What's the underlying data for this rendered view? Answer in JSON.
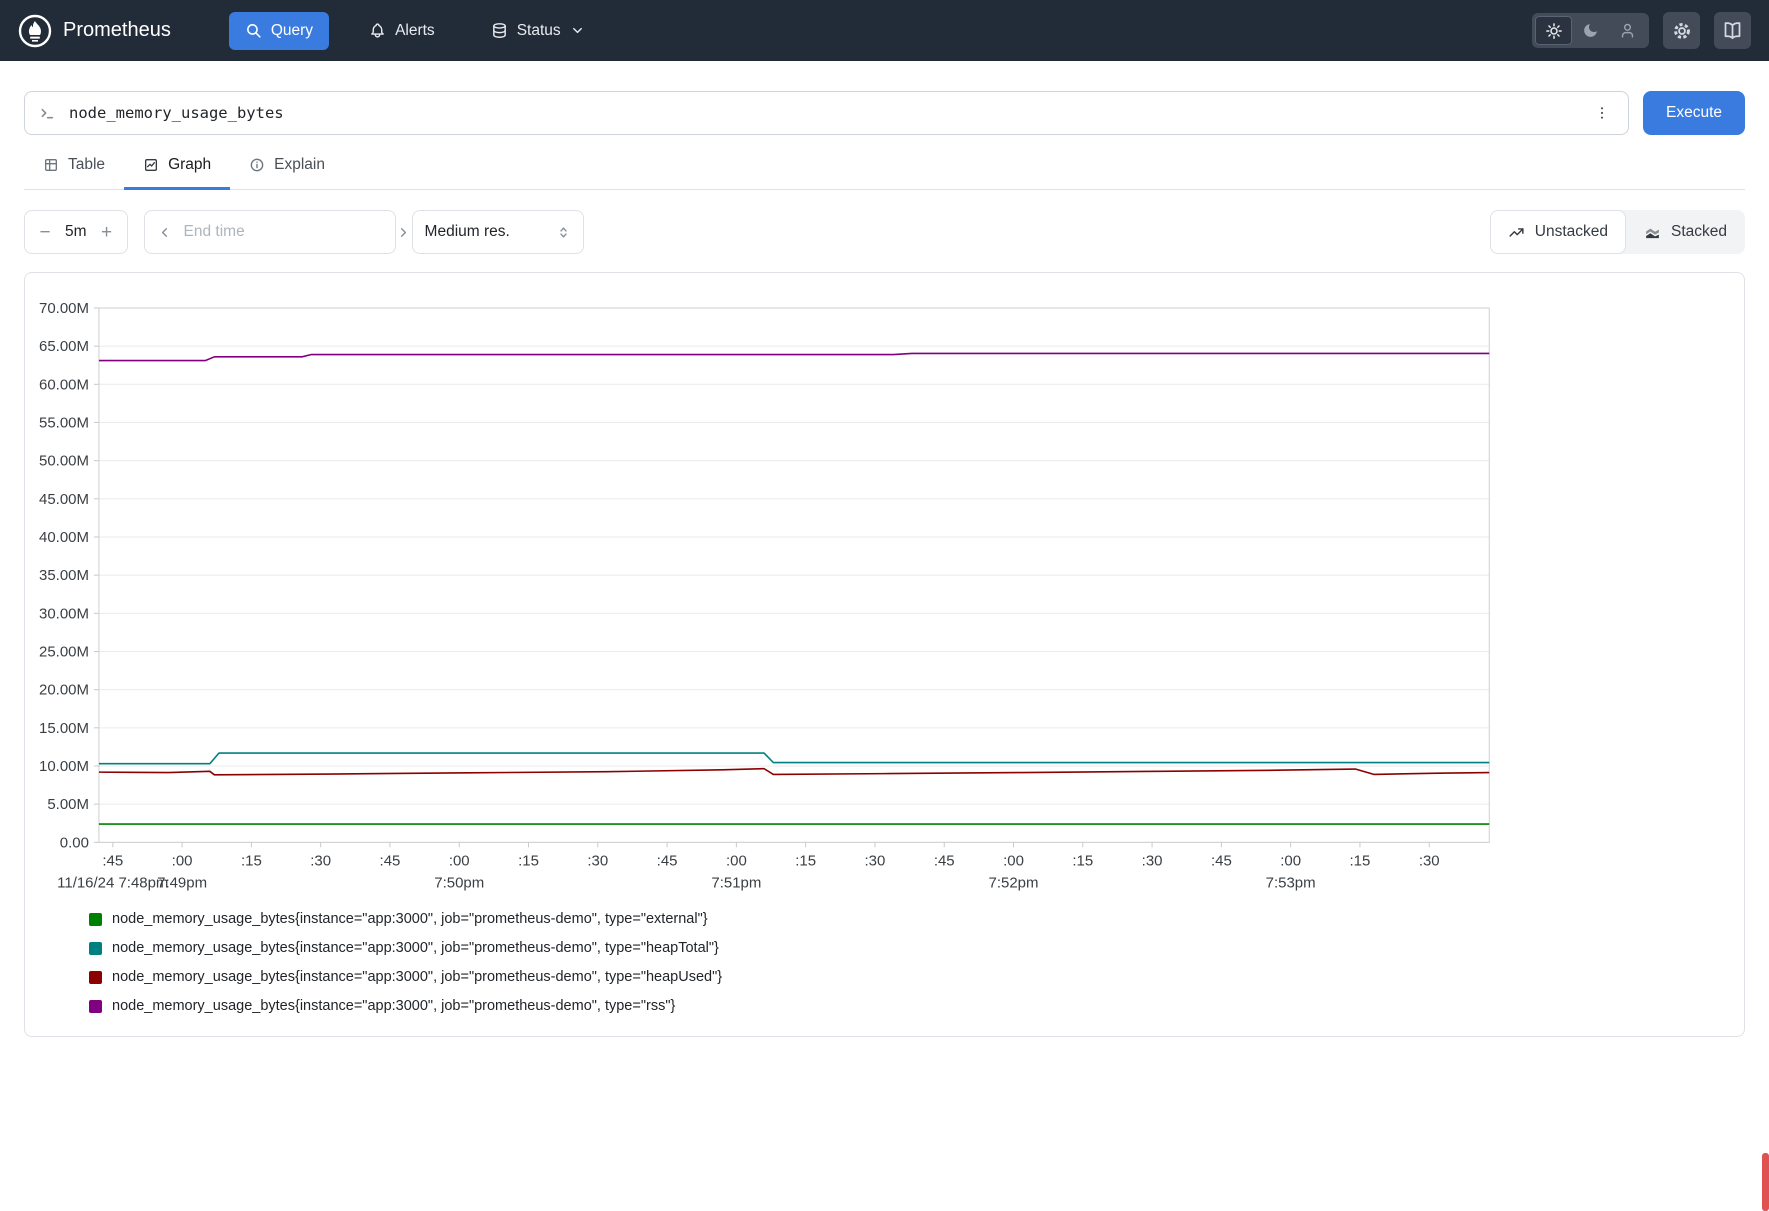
{
  "navbar": {
    "brand": "Prometheus",
    "query_label": "Query",
    "alerts_label": "Alerts",
    "status_label": "Status"
  },
  "icons": {
    "logo": "prometheus-flame",
    "query": "search",
    "alerts": "bell",
    "status": "database",
    "status_caret": "chevron-down",
    "theme": [
      "sun",
      "moon",
      "user"
    ],
    "settings": "gear",
    "docs": "book",
    "query_input": "terminal-prompt",
    "query_menu": "kebab-vertical",
    "tab_table": "grid",
    "tab_graph": "chart-box",
    "tab_explain": "info-circle",
    "range": [
      "minus",
      "plus"
    ],
    "end_time": [
      "chevron-left",
      "chevron-right"
    ],
    "resolution": "selector-updown",
    "unstacked": "trend-line",
    "stacked": "stacked-area"
  },
  "query_bar": {
    "value": "node_memory_usage_bytes",
    "execute_label": "Execute"
  },
  "tabs": {
    "table": "Table",
    "graph": "Graph",
    "explain": "Explain"
  },
  "controls": {
    "minus": "−",
    "range_value": "5m",
    "plus": "+",
    "end_time_placeholder": "End time",
    "resolution_value": "Medium res.",
    "unstacked_label": "Unstacked",
    "stacked_label": "Stacked"
  },
  "chart_data": {
    "type": "line",
    "title": "",
    "unit": "bytes (M = millions)",
    "ylim": [
      0,
      70
    ],
    "y_tick_values": [
      70,
      65,
      60,
      55,
      50,
      45,
      40,
      35,
      30,
      25,
      20,
      15,
      10,
      5,
      0
    ],
    "y_tick_labels": [
      "70.00M",
      "65.00M",
      "60.00M",
      "55.00M",
      "50.00M",
      "45.00M",
      "40.00M",
      "35.00M",
      "30.00M",
      "25.00M",
      "20.00M",
      "15.00M",
      "10.00M",
      "5.00M",
      "0.00"
    ],
    "time_domain_seconds": [
      0,
      301
    ],
    "x_tick_seconds": [
      3,
      18,
      33,
      48,
      63,
      78,
      93,
      108,
      123,
      138,
      153,
      168,
      183,
      198,
      213,
      228,
      243,
      258,
      273,
      288
    ],
    "x_tick_labels": [
      ":45",
      ":00",
      ":15",
      ":30",
      ":45",
      ":00",
      ":15",
      ":30",
      ":45",
      ":00",
      ":15",
      ":30",
      ":45",
      ":00",
      ":15",
      ":30",
      ":45",
      ":00",
      ":15",
      ":30"
    ],
    "x_date_labels": [
      {
        "label": "11/16/24 7:48pm",
        "t": 3
      },
      {
        "label": "7:49pm",
        "t": 18
      },
      {
        "label": "7:50pm",
        "t": 78
      },
      {
        "label": "7:51pm",
        "t": 138
      },
      {
        "label": "7:52pm",
        "t": 198
      },
      {
        "label": "7:53pm",
        "t": 258
      }
    ],
    "grid": "horizontal",
    "legend_position": "bottom-left",
    "series": [
      {
        "name": "node_memory_usage_bytes{instance=\"app:3000\", job=\"prometheus-demo\", type=\"external\"}",
        "color": "#008000",
        "points": [
          [
            0,
            2.4
          ],
          [
            301,
            2.4
          ]
        ]
      },
      {
        "name": "node_memory_usage_bytes{instance=\"app:3000\", job=\"prometheus-demo\", type=\"heapTotal\"}",
        "color": "#008080",
        "points": [
          [
            0,
            10.3
          ],
          [
            24,
            10.3
          ],
          [
            26,
            11.7
          ],
          [
            144,
            11.7
          ],
          [
            146,
            10.45
          ],
          [
            301,
            10.45
          ]
        ]
      },
      {
        "name": "node_memory_usage_bytes{instance=\"app:3000\", job=\"prometheus-demo\", type=\"heapUsed\"}",
        "color": "#8b0000",
        "points": [
          [
            0,
            9.2
          ],
          [
            15,
            9.15
          ],
          [
            24,
            9.3
          ],
          [
            25,
            8.85
          ],
          [
            50,
            8.95
          ],
          [
            80,
            9.1
          ],
          [
            110,
            9.25
          ],
          [
            135,
            9.5
          ],
          [
            144,
            9.65
          ],
          [
            146,
            8.9
          ],
          [
            170,
            9.0
          ],
          [
            200,
            9.15
          ],
          [
            230,
            9.3
          ],
          [
            255,
            9.45
          ],
          [
            272,
            9.6
          ],
          [
            276,
            8.9
          ],
          [
            290,
            9.05
          ],
          [
            301,
            9.15
          ]
        ]
      },
      {
        "name": "node_memory_usage_bytes{instance=\"app:3000\", job=\"prometheus-demo\", type=\"rss\"}",
        "color": "#800080",
        "points": [
          [
            0,
            63.1
          ],
          [
            23,
            63.1
          ],
          [
            25,
            63.6
          ],
          [
            44,
            63.6
          ],
          [
            46,
            63.9
          ],
          [
            172,
            63.9
          ],
          [
            176,
            64.05
          ],
          [
            301,
            64.05
          ]
        ]
      }
    ]
  },
  "legend": {
    "items": [
      {
        "color": "#008000",
        "label": "node_memory_usage_bytes{instance=\"app:3000\", job=\"prometheus-demo\", type=\"external\"}"
      },
      {
        "color": "#008080",
        "label": "node_memory_usage_bytes{instance=\"app:3000\", job=\"prometheus-demo\", type=\"heapTotal\"}"
      },
      {
        "color": "#8b0000",
        "label": "node_memory_usage_bytes{instance=\"app:3000\", job=\"prometheus-demo\", type=\"heapUsed\"}"
      },
      {
        "color": "#800080",
        "label": "node_memory_usage_bytes{instance=\"app:3000\", job=\"prometheus-demo\", type=\"rss\"}"
      }
    ]
  }
}
